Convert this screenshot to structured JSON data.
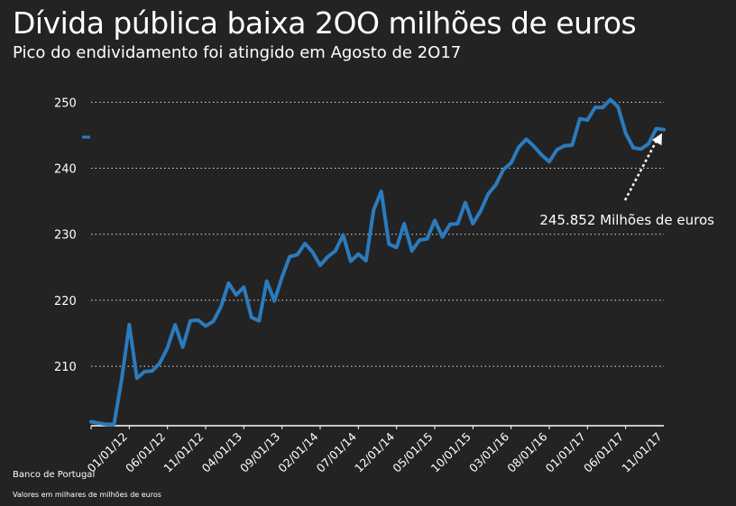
{
  "title": "Dívida pública baixa 2OO milhões de euros",
  "subtitle": "Pico do endividamento foi atingido em Agosto de 2O17",
  "source": "Banco de Portugal",
  "note": "Valores em milhares de milhões de euros",
  "colors": {
    "background": "#232323",
    "line": "#2b7bbd",
    "text": "#ffffff",
    "grid": "#ffffff"
  },
  "chart_data": {
    "type": "line",
    "ylim": [
      201,
      251
    ],
    "yticks": [
      210,
      220,
      230,
      240,
      250
    ],
    "grid": "horizontal-dotted",
    "legend": "none",
    "x_start": "01/01/12",
    "x_tick_labels": [
      "01/01/12",
      "06/01/12",
      "11/01/12",
      "04/01/13",
      "09/01/13",
      "02/01/14",
      "07/01/14",
      "12/01/14",
      "05/01/15",
      "10/01/15",
      "03/01/16",
      "08/01/16",
      "01/01/17",
      "06/01/17",
      "11/01/17"
    ],
    "series": [
      {
        "values": [
          201.6,
          201.4,
          201.2,
          201.2,
          208.0,
          216.3,
          208.2,
          209.2,
          209.3,
          210.5,
          212.8,
          216.3,
          212.9,
          216.9,
          217.0,
          216.1,
          216.8,
          219.0,
          222.6,
          220.8,
          222.0,
          217.4,
          216.9,
          222.9,
          219.9,
          223.5,
          226.6,
          226.9,
          228.6,
          227.3,
          225.3,
          226.6,
          227.5,
          229.9,
          225.9,
          227.0,
          226.0,
          233.7,
          236.5,
          228.5,
          228.0,
          231.6,
          227.5,
          229.1,
          229.3,
          232.1,
          229.6,
          231.5,
          231.6,
          234.8,
          231.6,
          233.5,
          236.1,
          237.5,
          239.8,
          240.8,
          243.2,
          244.4,
          243.3,
          242.0,
          241.0,
          242.8,
          243.4,
          243.5,
          247.5,
          247.3,
          249.2,
          249.2,
          250.4,
          249.3,
          245.3,
          243.1,
          242.9,
          243.7,
          246.0,
          245.852
        ]
      }
    ],
    "annotation": {
      "text": "245.852 Milhões de euros",
      "target_index": 75
    }
  }
}
